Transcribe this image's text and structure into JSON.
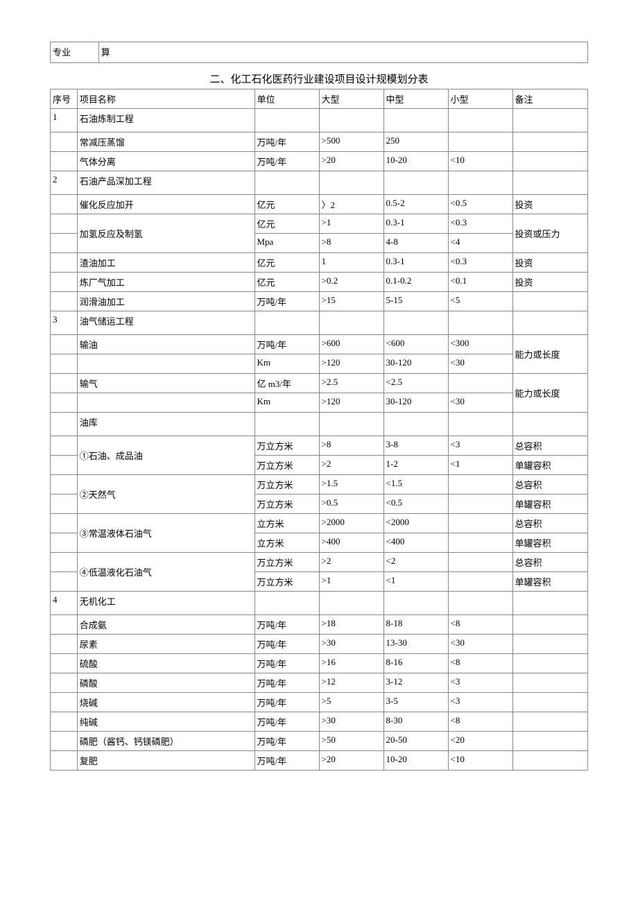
{
  "topRow": {
    "c1": "专业",
    "c2": "算"
  },
  "sectionTitle": "二、化工石化医药行业建设项目设计规模划分表",
  "headers": {
    "seq": "序号",
    "name": "项目名称",
    "unit": "单位",
    "large": "大型",
    "medium": "中型",
    "small": "小型",
    "note": "备注"
  },
  "rows": [
    {
      "seq": "1",
      "name": "石油炼制工程",
      "unit": "",
      "large": "",
      "medium": "",
      "small": "",
      "note": "",
      "tall": true
    },
    {
      "seq": "",
      "name": "常减压蒸馏",
      "unit": "万吨/年",
      "large": ">500",
      "medium": "250",
      "small": "",
      "note": ""
    },
    {
      "seq": "",
      "name": "气体分离",
      "unit": "万吨/年",
      "large": ">20",
      "medium": "10-20",
      "small": "<10",
      "note": ""
    },
    {
      "seq": "2",
      "name": "石油产品深加工程",
      "unit": "",
      "large": "",
      "medium": "",
      "small": "",
      "note": "",
      "tall": true
    },
    {
      "seq": "",
      "name": "催化反应加开",
      "unit": "亿元",
      "large": "〉2",
      "medium": "0.5-2",
      "small": "<0.5",
      "note": "投资"
    },
    {
      "seq": "",
      "name": "加氢反应及制氢",
      "unit": "亿元",
      "large": ">1",
      "medium": "0.3-1",
      "small": "<0.3",
      "note": "投资或压力",
      "nameRowspan": 2,
      "noteRowspan": 2
    },
    {
      "seq": "",
      "unit": "Mpa",
      "large": ">8",
      "medium": "4-8",
      "small": "<4",
      "skipName": true,
      "skipNote": true
    },
    {
      "seq": "",
      "name": "渣油加工",
      "unit": "亿元",
      "large": "1",
      "medium": "0.3-1",
      "small": "<0.3",
      "note": "投资"
    },
    {
      "seq": "",
      "name": "炼厂气加工",
      "unit": "亿元",
      "large": ">0.2",
      "medium": "0.1-0.2",
      "small": "<0.1",
      "note": "投资"
    },
    {
      "seq": "",
      "name": "润滑油加工",
      "unit": "万吨/年",
      "large": ">15",
      "medium": "5-15",
      "small": "<5",
      "note": ""
    },
    {
      "seq": "3",
      "name": "油气储运工程",
      "unit": "",
      "large": "",
      "medium": "",
      "small": "",
      "note": "",
      "tall": true
    },
    {
      "seq": "",
      "name": "输油",
      "unit": "万吨/年",
      "large": ">600",
      "medium": "<600",
      "small": "<300",
      "note": "能力或长度",
      "noteRowspan": 2
    },
    {
      "seq": "",
      "name": "",
      "unit": "Km",
      "large": ">120",
      "medium": "30-120",
      "small": "<30",
      "skipNote": true
    },
    {
      "seq": "",
      "name": "输气",
      "unit": "亿 m3/年",
      "large": ">2.5",
      "medium": "<2.5",
      "small": "",
      "note": "能力或长度",
      "noteRowspan": 2
    },
    {
      "seq": "",
      "name": "",
      "unit": "Km",
      "large": ">120",
      "medium": "30-120",
      "small": "<30",
      "skipNote": true
    },
    {
      "seq": "",
      "name": "油库",
      "unit": "",
      "large": "",
      "medium": "",
      "small": "",
      "note": "",
      "tall": true
    },
    {
      "seq": "",
      "name": "①石油、成品油",
      "unit": "万立方米",
      "large": ">8",
      "medium": "3-8",
      "small": "<3",
      "note": "总容积",
      "nameRowspan": 2
    },
    {
      "seq": "",
      "unit": "万立方米",
      "large": ">2",
      "medium": "1-2",
      "small": "<1",
      "note": "单罐容积",
      "skipName": true
    },
    {
      "seq": "",
      "name": "②天然气",
      "unit": "万立方米",
      "large": ">1.5",
      "medium": "<1.5",
      "small": "",
      "note": "总容积",
      "nameRowspan": 2
    },
    {
      "seq": "",
      "unit": "万立方米",
      "large": ">0.5",
      "medium": "<0.5",
      "small": "",
      "note": "单罐容积",
      "skipName": true
    },
    {
      "seq": "",
      "name": "③常温液体石油气",
      "unit": "立方米",
      "large": ">2000",
      "medium": "<2000",
      "small": "",
      "note": "总容积",
      "nameRowspan": 2
    },
    {
      "seq": "",
      "unit": "立方米",
      "large": ">400",
      "medium": "<400",
      "small": "",
      "note": "单罐容积",
      "skipName": true
    },
    {
      "seq": "",
      "name": "④低温液化石油气",
      "unit": "万立方米",
      "large": ">2",
      "medium": "<2",
      "small": "",
      "note": "总容积",
      "nameRowspan": 2
    },
    {
      "seq": "",
      "unit": "万立方米",
      "large": ">1",
      "medium": "<1",
      "small": "",
      "note": "单罐容积",
      "skipName": true
    },
    {
      "seq": "4",
      "name": "无机化工",
      "unit": "",
      "large": "",
      "medium": "",
      "small": "",
      "note": "",
      "tall": true
    },
    {
      "seq": "",
      "name": "合成氨",
      "unit": "万吨/年",
      "large": ">18",
      "medium": "8-18",
      "small": "<8",
      "note": ""
    },
    {
      "seq": "",
      "name": "尿素",
      "unit": "万吨/年",
      "large": ">30",
      "medium": "13-30",
      "small": "<30",
      "note": ""
    },
    {
      "seq": "",
      "name": "硫酸",
      "unit": "万吨/年",
      "large": ">16",
      "medium": "8-16",
      "small": "<8",
      "note": ""
    },
    {
      "seq": "",
      "name": "磷酸",
      "unit": "万吨/年",
      "large": ">12",
      "medium": "3-12",
      "small": "<3",
      "note": ""
    },
    {
      "seq": "",
      "name": "烧碱",
      "unit": "万吨/年",
      "large": ">5",
      "medium": "3-5",
      "small": "<3",
      "note": ""
    },
    {
      "seq": "",
      "name": "纯碱",
      "unit": "万吨/年",
      "large": ">30",
      "medium": "8-30",
      "small": "<8",
      "note": ""
    },
    {
      "seq": "",
      "name": "磷肥（酱钙、钙镁磷肥）",
      "unit": "万吨/年",
      "large": ">50",
      "medium": "20-50",
      "small": "<20",
      "note": ""
    },
    {
      "seq": "",
      "name": "复肥",
      "unit": "万吨/年",
      "large": ">20",
      "medium": "10-20",
      "small": "<10",
      "note": ""
    }
  ]
}
